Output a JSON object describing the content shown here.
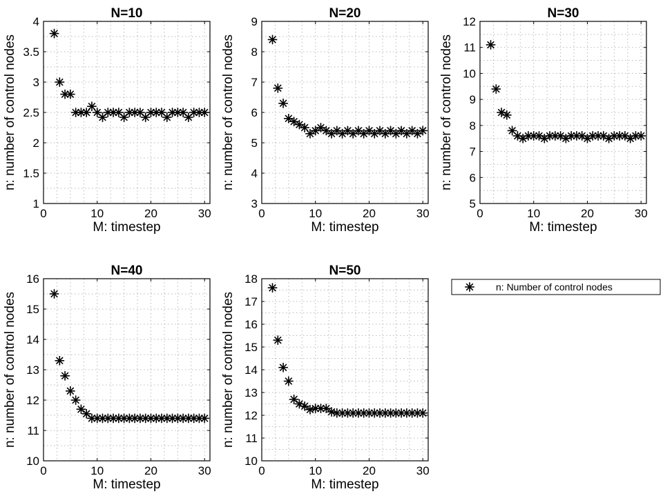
{
  "chart_data": [
    {
      "type": "scatter",
      "title": "N=10",
      "xlabel": "M: timestep",
      "ylabel": "n: number of control nodes",
      "xlim": [
        0,
        31
      ],
      "ylim": [
        1,
        4
      ],
      "xticks": [
        0,
        10,
        20,
        30
      ],
      "yticks": [
        1,
        1.5,
        2,
        2.5,
        3,
        3.5,
        4
      ],
      "yticklabels": [
        "1",
        "1.5",
        "2",
        "2.5",
        "3",
        "3.5",
        "4"
      ],
      "grid": true,
      "series": [
        {
          "name": "n: Number of control nodes",
          "x": [
            2,
            3,
            4,
            5,
            6,
            7,
            8,
            9,
            10,
            11,
            12,
            13,
            14,
            15,
            16,
            17,
            18,
            19,
            20,
            21,
            22,
            23,
            24,
            25,
            26,
            27,
            28,
            29,
            30
          ],
          "y": [
            3.8,
            3.0,
            2.8,
            2.8,
            2.5,
            2.5,
            2.5,
            2.6,
            2.5,
            2.42,
            2.5,
            2.5,
            2.5,
            2.42,
            2.5,
            2.5,
            2.5,
            2.42,
            2.5,
            2.5,
            2.5,
            2.42,
            2.5,
            2.5,
            2.5,
            2.42,
            2.5,
            2.5,
            2.5
          ]
        }
      ]
    },
    {
      "type": "scatter",
      "title": "N=20",
      "xlabel": "M: timestep",
      "ylabel": "n: number of control nodes",
      "xlim": [
        0,
        31
      ],
      "ylim": [
        3,
        9
      ],
      "xticks": [
        0,
        10,
        20,
        30
      ],
      "yticks": [
        3,
        4,
        5,
        6,
        7,
        8,
        9
      ],
      "yticklabels": [
        "3",
        "4",
        "5",
        "6",
        "7",
        "8",
        "9"
      ],
      "grid": true,
      "series": [
        {
          "name": "n: Number of control nodes",
          "x": [
            2,
            3,
            4,
            5,
            6,
            7,
            8,
            9,
            10,
            11,
            12,
            13,
            14,
            15,
            16,
            17,
            18,
            19,
            20,
            21,
            22,
            23,
            24,
            25,
            26,
            27,
            28,
            29,
            30
          ],
          "y": [
            8.4,
            6.8,
            6.3,
            5.8,
            5.7,
            5.6,
            5.5,
            5.3,
            5.4,
            5.5,
            5.4,
            5.3,
            5.4,
            5.3,
            5.4,
            5.3,
            5.4,
            5.3,
            5.4,
            5.3,
            5.4,
            5.3,
            5.4,
            5.3,
            5.4,
            5.3,
            5.4,
            5.3,
            5.4
          ]
        }
      ]
    },
    {
      "type": "scatter",
      "title": "N=30",
      "xlabel": "M: timestep",
      "ylabel": "n: number of control nodes",
      "xlim": [
        0,
        31
      ],
      "ylim": [
        5,
        12
      ],
      "xticks": [
        0,
        10,
        20,
        30
      ],
      "yticks": [
        5,
        6,
        7,
        8,
        9,
        10,
        11,
        12
      ],
      "yticklabels": [
        "5",
        "6",
        "7",
        "8",
        "9",
        "10",
        "11",
        "12"
      ],
      "grid": true,
      "series": [
        {
          "name": "n: Number of control nodes",
          "x": [
            2,
            3,
            4,
            5,
            6,
            7,
            8,
            9,
            10,
            11,
            12,
            13,
            14,
            15,
            16,
            17,
            18,
            19,
            20,
            21,
            22,
            23,
            24,
            25,
            26,
            27,
            28,
            29,
            30
          ],
          "y": [
            11.1,
            9.4,
            8.5,
            8.4,
            7.8,
            7.6,
            7.5,
            7.6,
            7.6,
            7.6,
            7.5,
            7.6,
            7.6,
            7.6,
            7.5,
            7.6,
            7.6,
            7.6,
            7.5,
            7.6,
            7.6,
            7.6,
            7.5,
            7.6,
            7.6,
            7.6,
            7.5,
            7.6,
            7.6
          ]
        }
      ]
    },
    {
      "type": "scatter",
      "title": "N=40",
      "xlabel": "M: timestep",
      "ylabel": "n: number of control nodes",
      "xlim": [
        0,
        31
      ],
      "ylim": [
        10,
        16
      ],
      "xticks": [
        0,
        10,
        20,
        30
      ],
      "yticks": [
        10,
        11,
        12,
        13,
        14,
        15,
        16
      ],
      "yticklabels": [
        "10",
        "11",
        "12",
        "13",
        "14",
        "15",
        "16"
      ],
      "grid": true,
      "series": [
        {
          "name": "n: Number of control nodes",
          "x": [
            2,
            3,
            4,
            5,
            6,
            7,
            8,
            9,
            10,
            11,
            12,
            13,
            14,
            15,
            16,
            17,
            18,
            19,
            20,
            21,
            22,
            23,
            24,
            25,
            26,
            27,
            28,
            29,
            30
          ],
          "y": [
            15.5,
            13.3,
            12.8,
            12.3,
            12.0,
            11.7,
            11.55,
            11.4,
            11.4,
            11.4,
            11.4,
            11.4,
            11.4,
            11.4,
            11.4,
            11.4,
            11.4,
            11.4,
            11.4,
            11.4,
            11.4,
            11.4,
            11.4,
            11.4,
            11.4,
            11.4,
            11.4,
            11.4,
            11.4
          ]
        }
      ]
    },
    {
      "type": "scatter",
      "title": "N=50",
      "xlabel": "M: timestep",
      "ylabel": "n: number of control nodes",
      "xlim": [
        0,
        31
      ],
      "ylim": [
        10,
        18
      ],
      "xticks": [
        0,
        10,
        20,
        30
      ],
      "yticks": [
        10,
        11,
        12,
        13,
        14,
        15,
        16,
        17,
        18
      ],
      "yticklabels": [
        "10",
        "11",
        "12",
        "13",
        "14",
        "15",
        "16",
        "17",
        "18"
      ],
      "grid": true,
      "series": [
        {
          "name": "n: Number of control nodes",
          "x": [
            2,
            3,
            4,
            5,
            6,
            7,
            8,
            9,
            10,
            11,
            12,
            13,
            14,
            15,
            16,
            17,
            18,
            19,
            20,
            21,
            22,
            23,
            24,
            25,
            26,
            27,
            28,
            29,
            30
          ],
          "y": [
            17.6,
            15.3,
            14.1,
            13.5,
            12.7,
            12.5,
            12.4,
            12.25,
            12.3,
            12.3,
            12.3,
            12.15,
            12.1,
            12.1,
            12.1,
            12.1,
            12.1,
            12.1,
            12.1,
            12.1,
            12.1,
            12.1,
            12.1,
            12.1,
            12.1,
            12.1,
            12.1,
            12.1,
            12.1
          ]
        }
      ]
    }
  ],
  "legend": {
    "label": "n: Number of control nodes",
    "marker": "asterisk"
  },
  "colors": {
    "marker": "#000000",
    "grid": "#b8b8b8"
  }
}
